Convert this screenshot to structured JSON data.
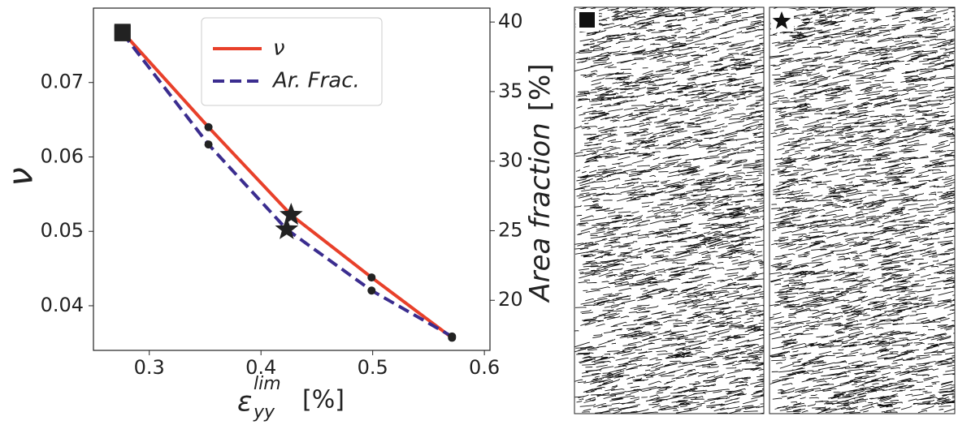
{
  "chart_data": {
    "type": "line",
    "xlabel": {
      "symbol": "ε",
      "sub": "yy",
      "sup": "lim",
      "unit": "[%]"
    },
    "ylabel": "ν",
    "y2label": {
      "text": "Area fraction",
      "unit": "[%]"
    },
    "xlim": [
      0.25,
      0.605
    ],
    "xticks": [
      0.3,
      0.4,
      0.5,
      0.6
    ],
    "ylim": [
      0.034,
      0.08
    ],
    "yticks": [
      0.04,
      0.05,
      0.06,
      0.07
    ],
    "y2lim": [
      16.4,
      41
    ],
    "y2ticks": [
      20,
      25,
      30,
      35,
      40
    ],
    "legend": "upper center",
    "series": [
      {
        "name": "ν",
        "color": "#e8402a",
        "dash": "solid",
        "axis": "y",
        "x": [
          0.276,
          0.353,
          0.427,
          0.499,
          0.571
        ],
        "values": [
          0.0768,
          0.064,
          0.0522,
          0.0438,
          0.0357
        ],
        "markers": [
          "square",
          "circle",
          "star",
          "circle",
          "circle"
        ]
      },
      {
        "name": "Ar. Frac.",
        "color": "#3b2d8f",
        "dash": "dashed",
        "axis": "y2",
        "x": [
          0.276,
          0.353,
          0.423,
          0.499,
          0.571
        ],
        "values": [
          39.2,
          31.2,
          25.1,
          20.7,
          17.4
        ],
        "markers": [
          "square",
          "circle",
          "star",
          "circle",
          "circle"
        ]
      }
    ]
  }
}
